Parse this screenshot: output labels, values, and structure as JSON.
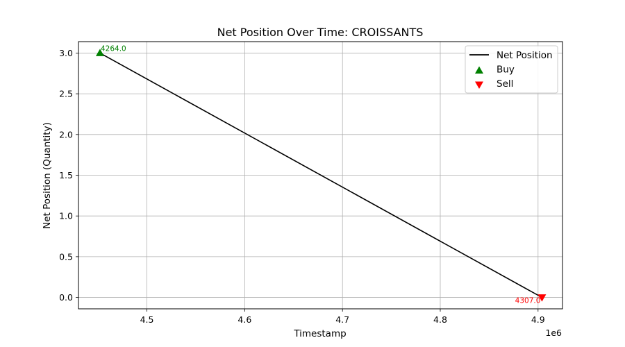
{
  "chart_data": {
    "type": "line",
    "title": "Net Position Over Time: CROISSANTS",
    "xlabel": "Timestamp",
    "ylabel": "Net Position (Quantity)",
    "x_offset_label": "1e6",
    "xlim": [
      4.43,
      4.925
    ],
    "ylim": [
      -0.14,
      3.14
    ],
    "x_ticks": [
      4.5,
      4.6,
      4.7,
      4.8,
      4.9
    ],
    "x_tick_labels": [
      "4.5",
      "4.6",
      "4.7",
      "4.8",
      "4.9"
    ],
    "y_ticks": [
      0.0,
      0.5,
      1.0,
      1.5,
      2.0,
      2.5,
      3.0
    ],
    "y_tick_labels": [
      "0.0",
      "0.5",
      "1.0",
      "1.5",
      "2.0",
      "2.5",
      "3.0"
    ],
    "grid": true,
    "legend_placement": "top-right",
    "series": [
      {
        "name": "Net Position",
        "color": "#000000",
        "points": [
          {
            "x": 4.452,
            "y": 3.0
          },
          {
            "x": 4.904,
            "y": 0.0
          }
        ]
      }
    ],
    "markers": [
      {
        "name": "Buy",
        "shape": "triangle-up",
        "color": "#008000",
        "points": [
          {
            "x": 4.452,
            "y": 3.0,
            "label": "4264.0"
          }
        ]
      },
      {
        "name": "Sell",
        "shape": "triangle-down",
        "color": "#ff0000",
        "points": [
          {
            "x": 4.904,
            "y": 0.0,
            "label": "4307.0"
          }
        ]
      }
    ]
  }
}
